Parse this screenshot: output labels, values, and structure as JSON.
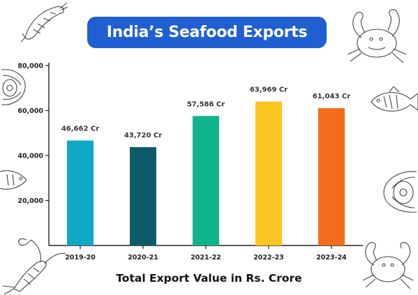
{
  "title": "India’s Seafood Exports",
  "xlabel": "Total Export Value in Rs. Crore",
  "colors": {
    "title_bg": "#1f5fd1",
    "bars": [
      "#0ea7c6",
      "#0d5a6b",
      "#10b48c",
      "#fcc520",
      "#f26c1b"
    ]
  },
  "decor": {
    "icons": [
      "shrimp-icon",
      "crab-icon",
      "oyster-icon",
      "fish-icon",
      "fish-icon",
      "oyster-icon",
      "lobster-icon",
      "crab-icon"
    ]
  },
  "chart_data": {
    "type": "bar",
    "categories": [
      "2019-20",
      "2020-21",
      "2021-22",
      "2022-23",
      "2023-24"
    ],
    "values": [
      46662,
      43720,
      57586,
      63969,
      61043
    ],
    "data_labels": [
      "46,662 Cr",
      "43,720 Cr",
      "57,586 Cr",
      "63,969 Cr",
      "61,043 Cr"
    ],
    "ylim": [
      0,
      80000
    ],
    "yticks": [
      20000,
      40000,
      60000,
      80000
    ],
    "ytick_labels": [
      "20,000",
      "40,000",
      "60,000",
      "80,000"
    ],
    "grid": false,
    "legend": "none"
  }
}
